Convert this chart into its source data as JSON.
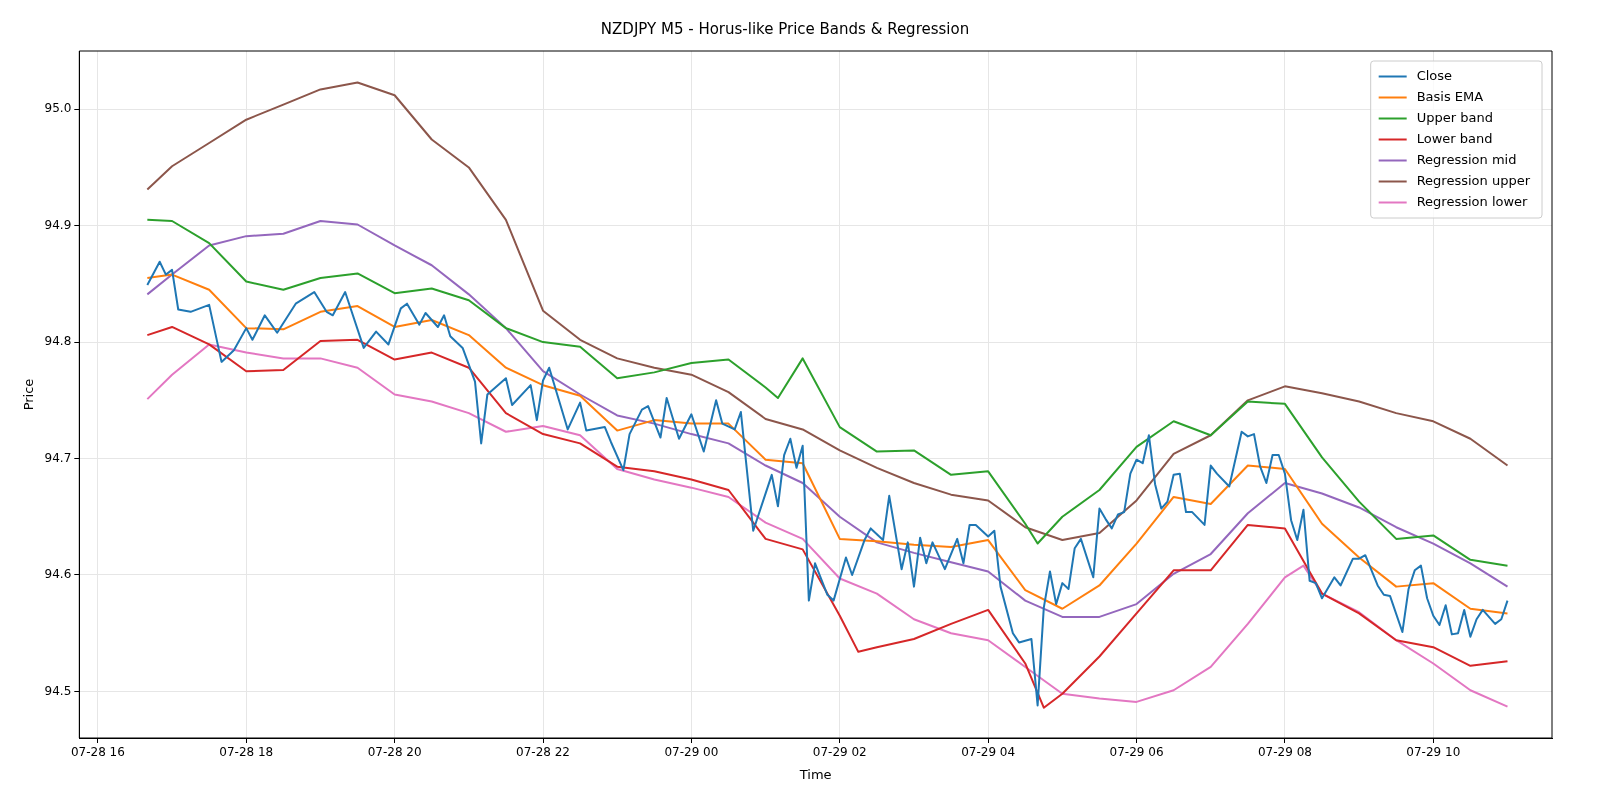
{
  "chart_data": {
    "type": "line",
    "title": "NZDJPY M5 - Horus-like Price Bands & Regression",
    "xlabel": "Time",
    "ylabel": "Price",
    "xlim": [
      "--07-28T15:45",
      "--07-29T11:36"
    ],
    "ylim": [
      94.46,
      95.05
    ],
    "xticks": [
      {
        "value": "--07-28T16:00",
        "label": "07-28 16"
      },
      {
        "value": "--07-28T18:00",
        "label": "07-28 18"
      },
      {
        "value": "--07-28T20:00",
        "label": "07-28 20"
      },
      {
        "value": "--07-28T22:00",
        "label": "07-28 22"
      },
      {
        "value": "--07-29T00:00",
        "label": "07-29 00"
      },
      {
        "value": "--07-29T02:00",
        "label": "07-29 02"
      },
      {
        "value": "--07-29T04:00",
        "label": "07-29 04"
      },
      {
        "value": "--07-29T06:00",
        "label": "07-29 06"
      },
      {
        "value": "--07-29T08:00",
        "label": "07-29 08"
      },
      {
        "value": "--07-29T10:00",
        "label": "07-29 10"
      }
    ],
    "yticks": [
      94.5,
      94.6,
      94.7,
      94.8,
      94.9,
      {
        "value": 95,
        "label": "95.0"
      }
    ],
    "grid": true,
    "legend": "top right",
    "x": [
      "--07-28T16:40",
      "--07-28T17:00",
      "--07-28T17:30",
      "--07-28T18:00",
      "--07-28T18:30",
      "--07-28T19:00",
      "--07-28T19:30",
      "--07-28T20:00",
      "--07-28T20:30",
      "--07-28T21:00",
      "--07-28T21:30",
      "--07-28T22:00",
      "--07-28T22:30",
      "--07-28T23:00",
      "--07-28T23:30",
      "--07-29T00:00",
      "--07-29T00:30",
      "--07-29T01:00",
      "--07-29T01:30",
      "--07-29T02:00",
      "--07-29T02:30",
      "--07-29T03:00",
      "--07-29T03:30",
      "--07-29T04:00",
      "--07-29T04:30",
      "--07-29T05:00",
      "--07-29T05:30",
      "--07-29T06:00",
      "--07-29T06:30",
      "--07-29T07:00",
      "--07-29T07:30",
      "--07-29T08:00",
      "--07-29T08:30",
      "--07-29T09:00",
      "--07-29T09:30",
      "--07-29T10:00",
      "--07-29T10:30",
      "--07-29T11:00"
    ],
    "series": [
      {
        "name": "Close",
        "color": "#1f77b4",
        "x": [
          "--07-28T16:40",
          "--07-28T16:50",
          "--07-28T16:55",
          "--07-28T17:00",
          "--07-28T17:05",
          "--07-28T17:15",
          "--07-28T17:30",
          "--07-28T17:40",
          "--07-28T17:50",
          "--07-28T18:00",
          "--07-28T18:05",
          "--07-28T18:15",
          "--07-28T18:25",
          "--07-28T18:40",
          "--07-28T18:55",
          "--07-28T19:05",
          "--07-28T19:10",
          "--07-28T19:20",
          "--07-28T19:35",
          "--07-28T19:45",
          "--07-28T19:55",
          "--07-28T20:05",
          "--07-28T20:10",
          "--07-28T20:20",
          "--07-28T20:25",
          "--07-28T20:35",
          "--07-28T20:40",
          "--07-28T20:45",
          "--07-28T20:55",
          "--07-28T21:05",
          "--07-28T21:10",
          "--07-28T21:15",
          "--07-28T21:30",
          "--07-28T21:35",
          "--07-28T21:50",
          "--07-28T21:55",
          "--07-28T22:00",
          "--07-28T22:05",
          "--07-28T22:20",
          "--07-28T22:30",
          "--07-28T22:35",
          "--07-28T22:50",
          "--07-28T22:55",
          "--07-28T23:05",
          "--07-28T23:10",
          "--07-28T23:20",
          "--07-28T23:25",
          "--07-28T23:35",
          "--07-28T23:40",
          "--07-28T23:50",
          "--07-29T00:00",
          "--07-29T00:10",
          "--07-29T00:20",
          "--07-29T00:25",
          "--07-29T00:35",
          "--07-29T00:40",
          "--07-29T00:50",
          "--07-29T01:05",
          "--07-29T01:10",
          "--07-29T01:15",
          "--07-29T01:20",
          "--07-29T01:25",
          "--07-29T01:30",
          "--07-29T01:35",
          "--07-29T01:40",
          "--07-29T01:50",
          "--07-29T01:55",
          "--07-29T02:05",
          "--07-29T02:10",
          "--07-29T02:20",
          "--07-29T02:25",
          "--07-29T02:35",
          "--07-29T02:40",
          "--07-29T02:50",
          "--07-29T02:55",
          "--07-29T03:00",
          "--07-29T03:05",
          "--07-29T03:10",
          "--07-29T03:15",
          "--07-29T03:25",
          "--07-29T03:35",
          "--07-29T03:40",
          "--07-29T03:45",
          "--07-29T03:50",
          "--07-29T04:00",
          "--07-29T04:05",
          "--07-29T04:10",
          "--07-29T04:20",
          "--07-29T04:25",
          "--07-29T04:35",
          "--07-29T04:40",
          "--07-29T04:45",
          "--07-29T04:50",
          "--07-29T04:55",
          "--07-29T05:00",
          "--07-29T05:05",
          "--07-29T05:10",
          "--07-29T05:15",
          "--07-29T05:25",
          "--07-29T05:30",
          "--07-29T05:35",
          "--07-29T05:40",
          "--07-29T05:45",
          "--07-29T05:50",
          "--07-29T05:55",
          "--07-29T06:00",
          "--07-29T06:05",
          "--07-29T06:10",
          "--07-29T06:15",
          "--07-29T06:20",
          "--07-29T06:25",
          "--07-29T06:30",
          "--07-29T06:35",
          "--07-29T06:40",
          "--07-29T06:45",
          "--07-29T06:55",
          "--07-29T07:00",
          "--07-29T07:05",
          "--07-29T07:15",
          "--07-29T07:25",
          "--07-29T07:30",
          "--07-29T07:35",
          "--07-29T07:40",
          "--07-29T07:45",
          "--07-29T07:50",
          "--07-29T07:55",
          "--07-29T08:00",
          "--07-29T08:05",
          "--07-29T08:10",
          "--07-29T08:15",
          "--07-29T08:20",
          "--07-29T08:25",
          "--07-29T08:30",
          "--07-29T08:40",
          "--07-29T08:45",
          "--07-29T08:55",
          "--07-29T09:00",
          "--07-29T09:05",
          "--07-29T09:15",
          "--07-29T09:20",
          "--07-29T09:25",
          "--07-29T09:35",
          "--07-29T09:40",
          "--07-29T09:45",
          "--07-29T09:50",
          "--07-29T09:55",
          "--07-29T10:00",
          "--07-29T10:05",
          "--07-29T10:10",
          "--07-29T10:15",
          "--07-29T10:20",
          "--07-29T10:25",
          "--07-29T10:30",
          "--07-29T10:35",
          "--07-29T10:40",
          "--07-29T10:50",
          "--07-29T10:55",
          "--07-29T11:00"
        ],
        "values": [
          94.849,
          94.869,
          94.858,
          94.862,
          94.828,
          94.826,
          94.832,
          94.783,
          94.793,
          94.812,
          94.802,
          94.823,
          94.808,
          94.833,
          94.843,
          94.826,
          94.823,
          94.843,
          94.795,
          94.809,
          94.798,
          94.829,
          94.833,
          94.815,
          94.825,
          94.813,
          94.823,
          94.805,
          94.795,
          94.766,
          94.713,
          94.755,
          94.769,
          94.746,
          94.763,
          94.733,
          94.767,
          94.778,
          94.725,
          94.748,
          94.724,
          94.727,
          94.714,
          94.69,
          94.721,
          94.742,
          94.745,
          94.718,
          94.752,
          94.717,
          94.738,
          94.706,
          94.75,
          94.73,
          94.725,
          94.74,
          94.638,
          94.686,
          94.659,
          94.703,
          94.717,
          94.692,
          94.711,
          94.578,
          94.61,
          94.583,
          94.578,
          94.615,
          94.6,
          94.63,
          94.64,
          94.63,
          94.668,
          94.605,
          94.628,
          94.59,
          94.632,
          94.61,
          94.628,
          94.605,
          94.631,
          94.61,
          94.643,
          94.643,
          94.633,
          94.638,
          94.59,
          94.55,
          94.542,
          94.545,
          94.488,
          94.572,
          94.603,
          94.575,
          94.593,
          94.588,
          94.623,
          94.631,
          94.598,
          94.657,
          94.648,
          94.64,
          94.652,
          94.654,
          94.687,
          94.699,
          94.696,
          94.72,
          94.678,
          94.657,
          94.663,
          94.686,
          94.687,
          94.654,
          94.654,
          94.643,
          94.694,
          94.687,
          94.676,
          94.723,
          94.719,
          94.721,
          94.693,
          94.679,
          94.703,
          94.703,
          94.687,
          94.647,
          94.63,
          94.656,
          94.595,
          94.593,
          94.58,
          94.598,
          94.591,
          94.614,
          94.614,
          94.617,
          94.591,
          94.583,
          94.582,
          94.551,
          94.588,
          94.604,
          94.608,
          94.58,
          94.565,
          94.557,
          94.574,
          94.549,
          94.55,
          94.57,
          94.547,
          94.562,
          94.57,
          94.558,
          94.562,
          94.578
        ]
      },
      {
        "name": "Basis EMA",
        "color": "#ff7f0e",
        "values": [
          94.855,
          94.858,
          94.845,
          94.812,
          94.811,
          94.826,
          94.831,
          94.813,
          94.819,
          94.806,
          94.778,
          94.763,
          94.754,
          94.724,
          94.733,
          94.73,
          94.73,
          94.699,
          94.696,
          94.631,
          94.629,
          94.626,
          94.624,
          94.63,
          94.587,
          94.571,
          94.591,
          94.627,
          94.667,
          94.661,
          94.694,
          94.691,
          94.644,
          94.615,
          94.59,
          94.593,
          94.571,
          94.567
        ]
      },
      {
        "name": "Upper band",
        "color": "#2ca02c",
        "x": [
          "--07-28T16:40",
          "--07-28T17:00",
          "--07-28T17:30",
          "--07-28T18:00",
          "--07-28T18:30",
          "--07-28T19:00",
          "--07-28T19:30",
          "--07-28T20:00",
          "--07-28T20:30",
          "--07-28T21:00",
          "--07-28T21:30",
          "--07-28T22:00",
          "--07-28T22:30",
          "--07-28T23:00",
          "--07-28T23:30",
          "--07-29T00:00",
          "--07-29T00:30",
          "--07-29T01:00",
          "--07-29T01:10",
          "--07-29T01:30",
          "--07-29T02:00",
          "--07-29T02:30",
          "--07-29T03:00",
          "--07-29T03:30",
          "--07-29T04:00",
          "--07-29T04:30",
          "--07-29T04:40",
          "--07-29T05:00",
          "--07-29T05:30",
          "--07-29T06:00",
          "--07-29T06:30",
          "--07-29T07:00",
          "--07-29T07:30",
          "--07-29T08:00",
          "--07-29T08:30",
          "--07-29T09:00",
          "--07-29T09:30",
          "--07-29T10:00",
          "--07-29T10:30",
          "--07-29T11:00"
        ],
        "values": [
          94.905,
          94.904,
          94.885,
          94.852,
          94.845,
          94.855,
          94.859,
          94.842,
          94.846,
          94.836,
          94.812,
          94.8,
          94.796,
          94.769,
          94.774,
          94.782,
          94.785,
          94.761,
          94.752,
          94.786,
          94.727,
          94.706,
          94.707,
          94.686,
          94.689,
          94.644,
          94.627,
          94.65,
          94.673,
          94.71,
          94.732,
          94.72,
          94.749,
          94.747,
          94.701,
          94.663,
          94.631,
          94.634,
          94.613,
          94.608
        ]
      },
      {
        "name": "Lower band",
        "color": "#d62728",
        "x": [
          "--07-28T16:40",
          "--07-28T17:00",
          "--07-28T17:30",
          "--07-28T18:00",
          "--07-28T18:30",
          "--07-28T19:00",
          "--07-28T19:30",
          "--07-28T20:00",
          "--07-28T20:30",
          "--07-28T21:00",
          "--07-28T21:30",
          "--07-28T22:00",
          "--07-28T22:30",
          "--07-28T23:00",
          "--07-28T23:30",
          "--07-29T00:00",
          "--07-29T00:30",
          "--07-29T01:00",
          "--07-29T01:30",
          "--07-29T02:00",
          "--07-29T02:15",
          "--07-29T02:30",
          "--07-29T03:00",
          "--07-29T03:30",
          "--07-29T04:00",
          "--07-29T04:30",
          "--07-29T04:45",
          "--07-29T05:00",
          "--07-29T05:30",
          "--07-29T06:00",
          "--07-29T06:30",
          "--07-29T07:00",
          "--07-29T07:30",
          "--07-29T08:00",
          "--07-29T08:30",
          "--07-29T09:00",
          "--07-29T09:30",
          "--07-29T10:00",
          "--07-29T10:30",
          "--07-29T11:00"
        ],
        "values": [
          94.806,
          94.813,
          94.798,
          94.775,
          94.776,
          94.801,
          94.802,
          94.785,
          94.791,
          94.778,
          94.739,
          94.721,
          94.713,
          94.693,
          94.689,
          94.682,
          94.673,
          94.631,
          94.622,
          94.565,
          94.534,
          94.538,
          94.545,
          94.558,
          94.57,
          94.524,
          94.486,
          94.498,
          94.53,
          94.567,
          94.604,
          94.604,
          94.643,
          94.64,
          94.584,
          94.567,
          94.544,
          94.538,
          94.522,
          94.526
        ]
      },
      {
        "name": "Regression mid",
        "color": "#9467bd",
        "values": [
          94.841,
          94.858,
          94.883,
          94.891,
          94.893,
          94.904,
          94.901,
          94.883,
          94.866,
          94.841,
          94.812,
          94.775,
          94.755,
          94.737,
          94.73,
          94.721,
          94.713,
          94.694,
          94.679,
          94.65,
          94.628,
          94.619,
          94.611,
          94.603,
          94.578,
          94.564,
          94.564,
          94.575,
          94.601,
          94.618,
          94.653,
          94.679,
          94.67,
          94.658,
          94.641,
          94.627,
          94.61,
          94.59
        ]
      },
      {
        "name": "Regression upper",
        "color": "#8c564b",
        "values": [
          94.931,
          94.951,
          94.971,
          94.991,
          95.004,
          95.017,
          95.023,
          95.012,
          94.974,
          94.95,
          94.905,
          94.827,
          94.802,
          94.786,
          94.778,
          94.772,
          94.757,
          94.734,
          94.725,
          94.707,
          94.692,
          94.679,
          94.669,
          94.664,
          94.641,
          94.63,
          94.636,
          94.664,
          94.704,
          94.72,
          94.75,
          94.762,
          94.756,
          94.749,
          94.739,
          94.732,
          94.717,
          94.694
        ]
      },
      {
        "name": "Regression lower",
        "color": "#e377c2",
        "x": [
          "--07-28T16:40",
          "--07-28T17:00",
          "--07-28T17:30",
          "--07-28T18:00",
          "--07-28T18:30",
          "--07-28T19:00",
          "--07-28T19:30",
          "--07-28T20:00",
          "--07-28T20:30",
          "--07-28T21:00",
          "--07-28T21:30",
          "--07-28T22:00",
          "--07-28T22:30",
          "--07-28T23:00",
          "--07-28T23:30",
          "--07-29T00:00",
          "--07-29T00:30",
          "--07-29T01:00",
          "--07-29T01:30",
          "--07-29T02:00",
          "--07-29T02:30",
          "--07-29T03:00",
          "--07-29T03:30",
          "--07-29T04:00",
          "--07-29T04:30",
          "--07-29T05:00",
          "--07-29T05:30",
          "--07-29T06:00",
          "--07-29T06:30",
          "--07-29T07:00",
          "--07-29T07:30",
          "--07-29T08:00",
          "--07-29T08:15",
          "--07-29T08:30",
          "--07-29T09:00",
          "--07-29T09:30",
          "--07-29T10:00",
          "--07-29T10:30",
          "--07-29T11:00"
        ],
        "values": [
          94.751,
          94.772,
          94.798,
          94.791,
          94.786,
          94.786,
          94.778,
          94.755,
          94.749,
          94.739,
          94.723,
          94.728,
          94.72,
          94.691,
          94.682,
          94.675,
          94.667,
          94.645,
          94.631,
          94.597,
          94.584,
          94.562,
          94.55,
          94.544,
          94.521,
          94.498,
          94.494,
          94.491,
          94.501,
          94.521,
          94.558,
          94.598,
          94.608,
          94.584,
          94.568,
          94.544,
          94.524,
          94.501,
          94.487
        ]
      }
    ]
  }
}
